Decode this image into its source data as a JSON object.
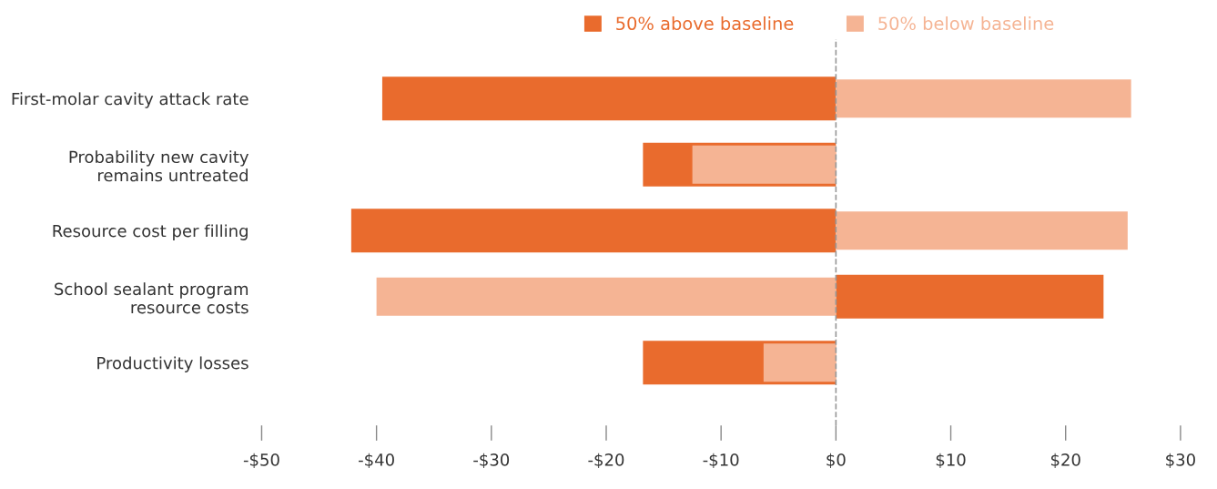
{
  "chart_data": {
    "type": "bar",
    "orientation": "horizontal",
    "categories": [
      "First-molar cavity attack rate",
      "Probability new cavity\nremains untreated",
      "Resource cost per filling",
      "School sealant program\nresource costs",
      "Productivity losses"
    ],
    "series": [
      {
        "name": "50% above baseline",
        "color": "#e96b2d",
        "values": [
          -39.5,
          -16.8,
          -42.2,
          23.3,
          -16.8
        ]
      },
      {
        "name": "50% below baseline",
        "color": "#f5b494",
        "values": [
          25.7,
          -12.5,
          25.4,
          -40.0,
          -6.3
        ]
      }
    ],
    "xlim": [
      -50,
      30
    ],
    "xticks": [
      {
        "value": -50,
        "label": "-$50"
      },
      {
        "value": -40,
        "label": "-$40"
      },
      {
        "value": -30,
        "label": "-$30"
      },
      {
        "value": -20,
        "label": "-$20"
      },
      {
        "value": -10,
        "label": "-$10"
      },
      {
        "value": 0,
        "label": "$0"
      },
      {
        "value": 10,
        "label": "$10"
      },
      {
        "value": 20,
        "label": "$20"
      },
      {
        "value": 30,
        "label": "$30"
      }
    ],
    "ref_lines": [
      {
        "axis": "x",
        "value": 0,
        "color": "#999999",
        "line_style": "dashed"
      }
    ],
    "legend": "top right",
    "grid": false
  }
}
